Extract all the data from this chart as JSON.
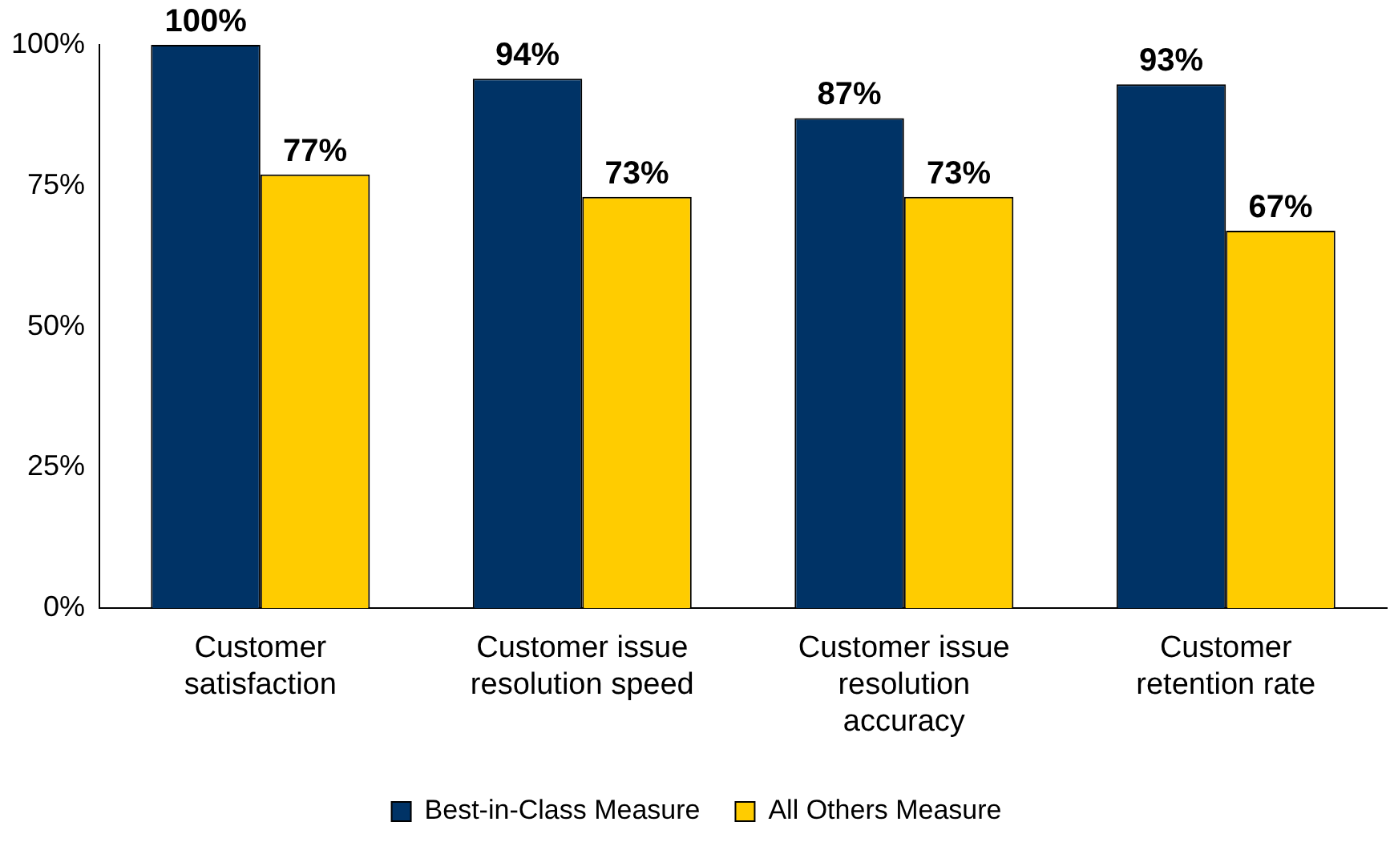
{
  "chart_data": {
    "type": "bar",
    "categories": [
      "Customer satisfaction",
      "Customer issue resolution speed",
      "Customer issue resolution accuracy",
      "Customer retention rate"
    ],
    "series": [
      {
        "name": "Best-in-Class Measure",
        "color": "#003366",
        "values": [
          100,
          94,
          87,
          93
        ],
        "value_labels": [
          "100%",
          "94%",
          "87%",
          "93%"
        ]
      },
      {
        "name": "All Others Measure",
        "color": "#ffcc00",
        "values": [
          77,
          73,
          73,
          67
        ],
        "value_labels": [
          "77%",
          "73%",
          "73%",
          "67%"
        ]
      }
    ],
    "ylim": [
      0,
      100
    ],
    "yticks": [
      {
        "value": 0,
        "label": "0%"
      },
      {
        "value": 25,
        "label": "25%"
      },
      {
        "value": 50,
        "label": "50%"
      },
      {
        "value": 75,
        "label": "75%"
      },
      {
        "value": 100,
        "label": "100%"
      }
    ],
    "grid": false,
    "legend": "bottom"
  }
}
